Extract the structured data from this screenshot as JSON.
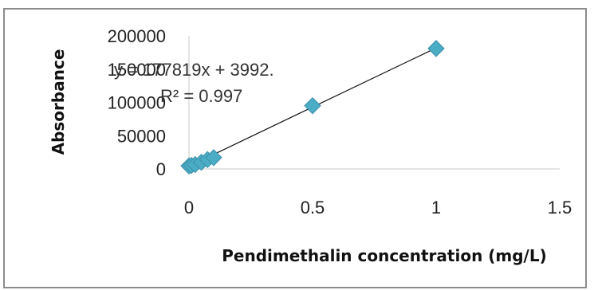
{
  "chart_data": {
    "type": "scatter",
    "xlabel": "Pendimethalin concentration (mg/L)",
    "ylabel": "Absorbance",
    "xlim": [
      0,
      1.5
    ],
    "ylim": [
      0,
      200000
    ],
    "x_ticks": [
      "0",
      "0.5",
      "1",
      "1.5"
    ],
    "y_ticks": [
      "0",
      "50000",
      "100000",
      "150000",
      "200000"
    ],
    "grid": false,
    "legend": "none",
    "marker_color": "#4bacc6",
    "series": [
      {
        "x": [
          0.0,
          0.01,
          0.025,
          0.05,
          0.075,
          0.1,
          0.5,
          1.0
        ],
        "y": [
          4500,
          5200,
          6500,
          10000,
          14000,
          17000,
          95000,
          181000
        ]
      }
    ],
    "trendline": {
      "slope": 177819,
      "intercept": 3992,
      "equation": "y = 177819x + 3992.",
      "r_squared": "R² = 0.997"
    }
  }
}
